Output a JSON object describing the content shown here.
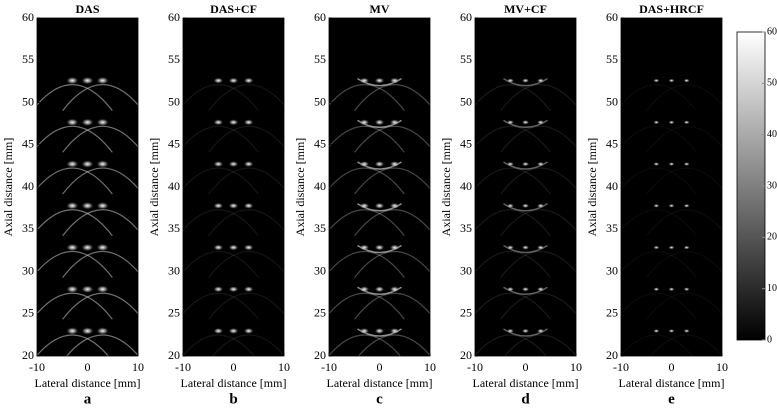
{
  "panels": [
    {
      "title": "DAS",
      "letter": "a"
    },
    {
      "title": "DAS+CF",
      "letter": "b"
    },
    {
      "title": "MV",
      "letter": "c"
    },
    {
      "title": "MV+CF",
      "letter": "d"
    },
    {
      "title": "DAS+HRCF",
      "letter": "e"
    }
  ],
  "xlabel": "Lateral distance [mm]",
  "ylabel": "Axial distance [mm]",
  "xlim": [
    -10,
    10
  ],
  "xticks": [
    -10,
    0,
    10
  ],
  "ylim": [
    20,
    60
  ],
  "yticks": [
    20,
    25,
    30,
    35,
    40,
    45,
    50,
    55,
    60
  ],
  "colorbar": {
    "lim": [
      0,
      60
    ],
    "ticks": [
      0,
      10,
      20,
      30,
      40,
      50,
      60
    ]
  }
}
